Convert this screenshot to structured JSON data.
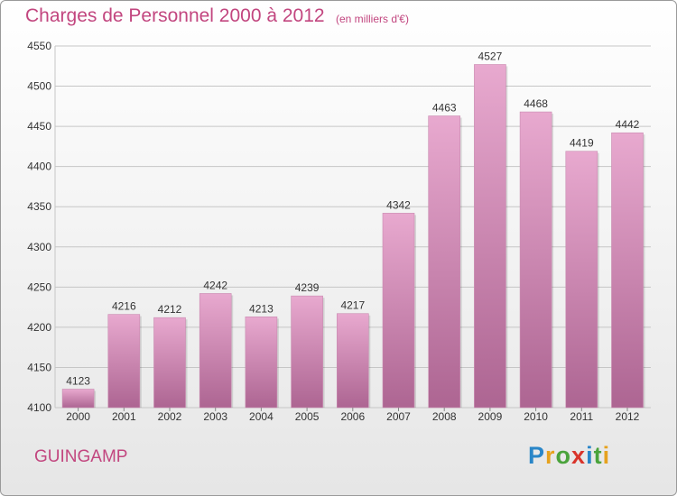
{
  "header": {
    "title": "Charges de Personnel 2000 à 2012",
    "subtitle": "(en milliers d'€)"
  },
  "footer": {
    "commune": "GUINGAMP",
    "brand": "Proxiti",
    "brand_letters": [
      "P",
      "r",
      "o",
      "x",
      "i",
      "t",
      "i"
    ],
    "brand_colors": [
      "#2a86c8",
      "#e6a21e",
      "#4aa33c",
      "#d9342b",
      "#2a86c8",
      "#4aa33c",
      "#e6a21e"
    ]
  },
  "colors": {
    "bar_top": "#e8a9cf",
    "bar_bottom": "#ad6592",
    "grid": "#c6c6c6",
    "axis_text": "#333333",
    "label_text": "#333333",
    "accent": "#c2467f"
  },
  "chart_data": {
    "type": "bar",
    "categories": [
      "2000",
      "2001",
      "2002",
      "2003",
      "2004",
      "2005",
      "2006",
      "2007",
      "2008",
      "2009",
      "2010",
      "2011",
      "2012"
    ],
    "values": [
      4123,
      4216,
      4212,
      4242,
      4213,
      4239,
      4217,
      4342,
      4463,
      4527,
      4468,
      4419,
      4442
    ],
    "ylim": [
      4100,
      4550
    ],
    "yticks": [
      4100,
      4150,
      4200,
      4250,
      4300,
      4350,
      4400,
      4450,
      4500,
      4550
    ],
    "grid": true,
    "data_labels": true
  }
}
